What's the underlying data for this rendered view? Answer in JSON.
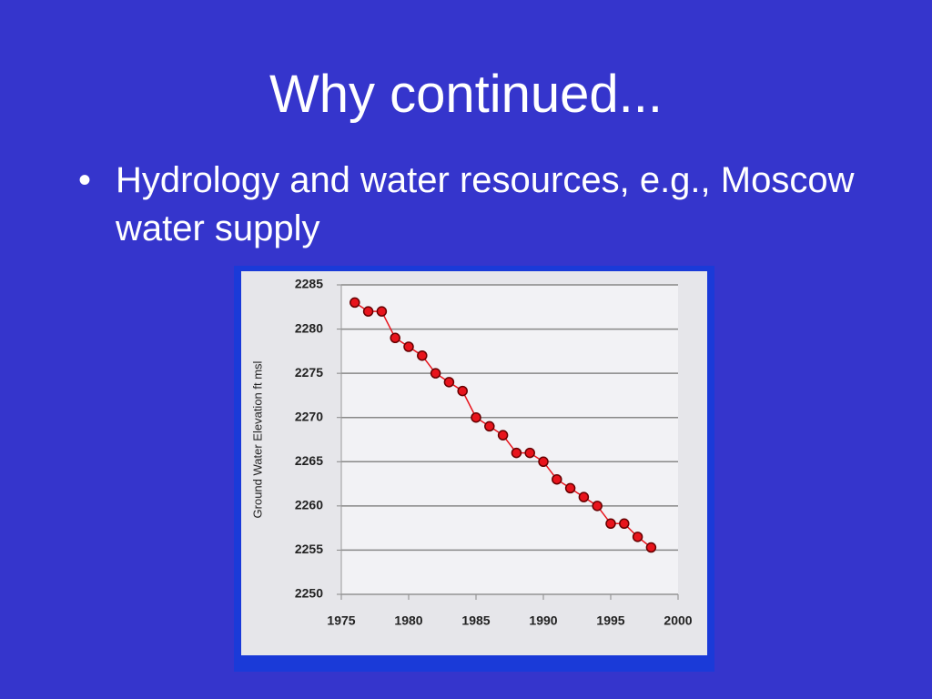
{
  "slide": {
    "title": "Why continued...",
    "bullets": [
      "Hydrology and water resources, e.g., Moscow water supply"
    ]
  },
  "chart_data": {
    "type": "line",
    "y_label": "Ground Water Elevation ft msl",
    "x": [
      1976,
      1977,
      1978,
      1979,
      1980,
      1981,
      1982,
      1983,
      1984,
      1985,
      1986,
      1987,
      1988,
      1989,
      1990,
      1991,
      1992,
      1993,
      1994,
      1995,
      1996,
      1997,
      1998
    ],
    "series": [
      {
        "name": "Ground water elevation",
        "color": "#e8141c",
        "values": [
          2283,
          2282,
          2282,
          2279,
          2278,
          2277,
          2275,
          2274,
          2273,
          2270,
          2269,
          2268,
          2266,
          2266,
          2265,
          2263,
          2262,
          2261,
          2260,
          2258,
          2258,
          2256.5,
          2255.3
        ]
      }
    ],
    "xlim": [
      1975,
      2000
    ],
    "xticks": [
      1975,
      1980,
      1985,
      1990,
      1995,
      2000
    ],
    "ylim": [
      2250,
      2285
    ],
    "yticks": [
      2250,
      2255,
      2260,
      2265,
      2270,
      2275,
      2280,
      2285
    ],
    "grid": true
  }
}
